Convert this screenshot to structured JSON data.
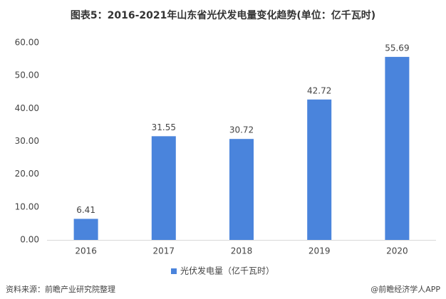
{
  "chart_data": {
    "type": "bar",
    "title": "图表5：2016-2021年山东省光伏发电量变化趋势(单位：亿千瓦时)",
    "categories": [
      "2016",
      "2017",
      "2018",
      "2019",
      "2020"
    ],
    "series": [
      {
        "name": "光伏发电量（亿千瓦时）",
        "color": "#4a84dc",
        "values": [
          6.41,
          31.55,
          30.72,
          42.72,
          55.69
        ]
      }
    ],
    "ylim": [
      0,
      60
    ],
    "yticks": [
      {
        "value": 0,
        "label": "0.00"
      },
      {
        "value": 10,
        "label": "10.00"
      },
      {
        "value": 20,
        "label": "20.00"
      },
      {
        "value": 30,
        "label": "30.00"
      },
      {
        "value": 40,
        "label": "40.00"
      },
      {
        "value": 50,
        "label": "50.00"
      },
      {
        "value": 60,
        "label": "60.00"
      }
    ],
    "grid": false,
    "legend": "bottom",
    "source": "资料来源：前瞻产业研究院整理",
    "watermark": "@前瞻经济学人APP"
  }
}
